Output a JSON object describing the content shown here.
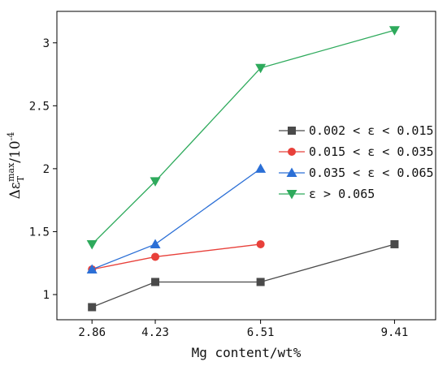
{
  "chart_data": {
    "type": "line",
    "xlabel": "Mg content/wt%",
    "ylabel": {
      "main": "Δε",
      "subscript": "T",
      "superscript": "max",
      "suffix": "/10",
      "exponent": "-4"
    },
    "x_ticks": [
      2.86,
      4.23,
      6.51,
      9.41
    ],
    "x_tick_labels": [
      "2.86",
      "4.23",
      "6.51",
      "9.41"
    ],
    "xlim": [
      2.1,
      10.3
    ],
    "y_ticks": [
      1,
      1.5,
      2,
      2.5,
      3
    ],
    "y_tick_labels": [
      "1",
      "1.5",
      "2",
      "2.5",
      "3"
    ],
    "ylim": [
      0.8,
      3.25
    ],
    "legend_position": "right",
    "grid": false,
    "series": [
      {
        "name": "0.002 < ε < 0.015",
        "color": "#4a4a4a",
        "marker": "square",
        "x": [
          2.86,
          4.23,
          6.51,
          9.41
        ],
        "y": [
          0.9,
          1.1,
          1.1,
          1.4
        ]
      },
      {
        "name": "0.015 < ε < 0.035",
        "color": "#e8403a",
        "marker": "circle",
        "x": [
          2.86,
          4.23,
          6.51
        ],
        "y": [
          1.2,
          1.3,
          1.4
        ]
      },
      {
        "name": "0.035 < ε < 0.065",
        "color": "#2b6fd6",
        "marker": "triangle-up",
        "x": [
          2.86,
          4.23,
          6.51
        ],
        "y": [
          1.2,
          1.4,
          2.0
        ]
      },
      {
        "name": "ε > 0.065",
        "color": "#2eaa5c",
        "marker": "triangle-down",
        "x": [
          2.86,
          4.23,
          6.51,
          9.41
        ],
        "y": [
          1.4,
          1.9,
          2.8,
          3.1
        ]
      }
    ]
  }
}
